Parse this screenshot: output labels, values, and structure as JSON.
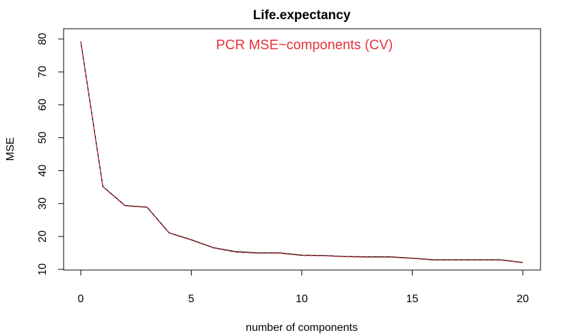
{
  "chart_data": {
    "type": "line",
    "title": "Life.expectancy",
    "annotation": "PCR MSE~components (CV)",
    "xlabel": "number of components",
    "ylabel": "MSE",
    "xlim": [
      0,
      20
    ],
    "ylim": [
      10,
      80
    ],
    "xticks": [
      0,
      5,
      10,
      15,
      20
    ],
    "yticks": [
      10,
      20,
      30,
      40,
      50,
      60,
      70,
      80
    ],
    "grid": false,
    "x": [
      0,
      1,
      2,
      3,
      4,
      5,
      6,
      7,
      8,
      9,
      10,
      11,
      12,
      13,
      14,
      15,
      16,
      17,
      18,
      19,
      20
    ],
    "series": [
      {
        "color": "#000000",
        "style": "solid",
        "values": [
          79.3,
          35.2,
          29.4,
          28.9,
          21.1,
          19.0,
          16.6,
          15.4,
          15.0,
          15.0,
          14.3,
          14.2,
          13.9,
          13.8,
          13.8,
          13.4,
          12.9,
          12.9,
          12.9,
          12.9,
          12.1
        ]
      },
      {
        "color": "#e8303a",
        "style": "dashed",
        "values": [
          79.3,
          35.1,
          29.3,
          28.8,
          21.0,
          18.9,
          16.5,
          15.2,
          14.9,
          14.9,
          14.2,
          14.1,
          13.8,
          13.7,
          13.7,
          13.3,
          12.8,
          12.8,
          12.8,
          12.8,
          12.0
        ]
      }
    ],
    "annotation_color": "#e8303a"
  }
}
